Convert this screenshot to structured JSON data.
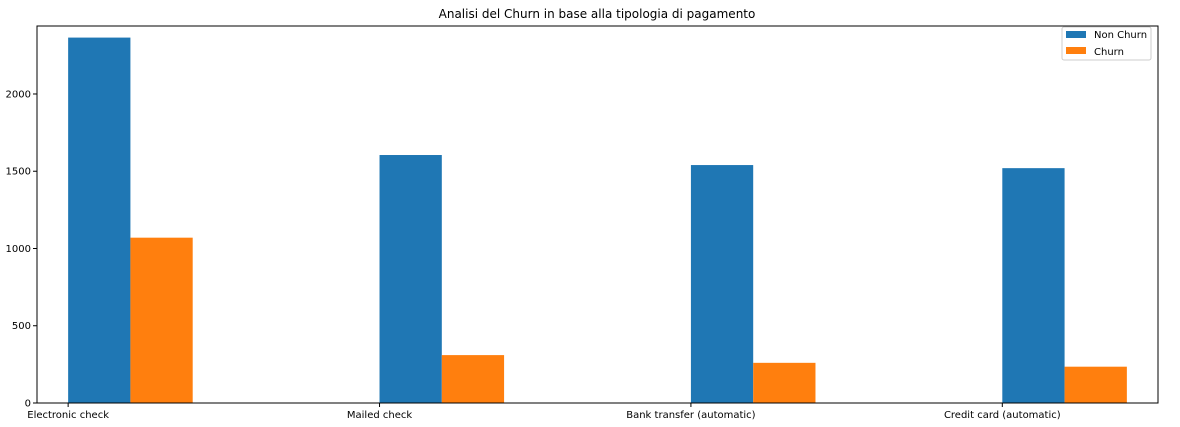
{
  "chart_data": {
    "type": "bar",
    "title": "Analisi del Churn in base alla tipologia di pagamento",
    "xlabel": "",
    "ylabel": "",
    "categories": [
      "Electronic check",
      "Mailed check",
      "Bank transfer (automatic)",
      "Credit card (automatic)"
    ],
    "series": [
      {
        "name": "Non Churn",
        "color": "#1f77b4",
        "values": [
          2365,
          1605,
          1540,
          1520
        ]
      },
      {
        "name": "Churn",
        "color": "#ff7f0e",
        "values": [
          1070,
          310,
          260,
          235
        ]
      }
    ],
    "ylim": [
      0,
      2440
    ],
    "yticks": [
      0,
      500,
      1000,
      1500,
      2000
    ],
    "grid": false,
    "legend_position": "top-right"
  }
}
